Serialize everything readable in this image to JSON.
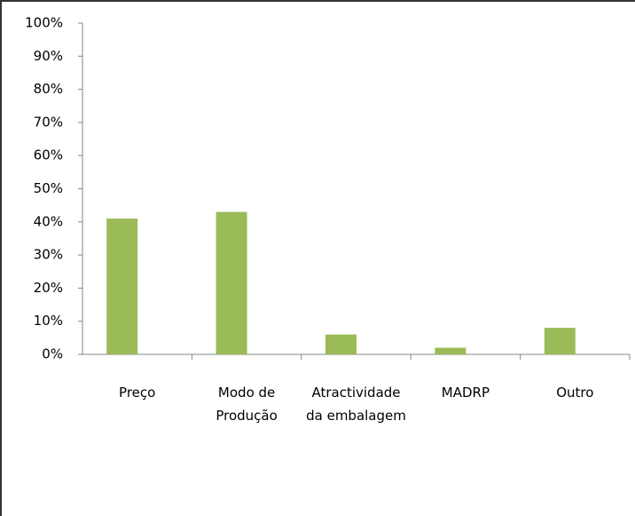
{
  "chart_data": {
    "type": "bar",
    "categories": [
      "Preço",
      "Modo de Produção",
      "Atractividade da embalagem",
      "MADRP",
      "Outro"
    ],
    "values": [
      41,
      43,
      6,
      2,
      8
    ],
    "color": "#9bbb59",
    "ylim": [
      0,
      100
    ],
    "yticks": [
      {
        "value": 0,
        "label": "0%"
      },
      {
        "value": 10,
        "label": "10%"
      },
      {
        "value": 20,
        "label": "20%"
      },
      {
        "value": 30,
        "label": "30%"
      },
      {
        "value": 40,
        "label": "40%"
      },
      {
        "value": 50,
        "label": "50%"
      },
      {
        "value": 60,
        "label": "60%"
      },
      {
        "value": 70,
        "label": "70%"
      },
      {
        "value": 80,
        "label": "80%"
      },
      {
        "value": 90,
        "label": "90%"
      },
      {
        "value": 100,
        "label": "100%"
      }
    ],
    "grid": false
  }
}
